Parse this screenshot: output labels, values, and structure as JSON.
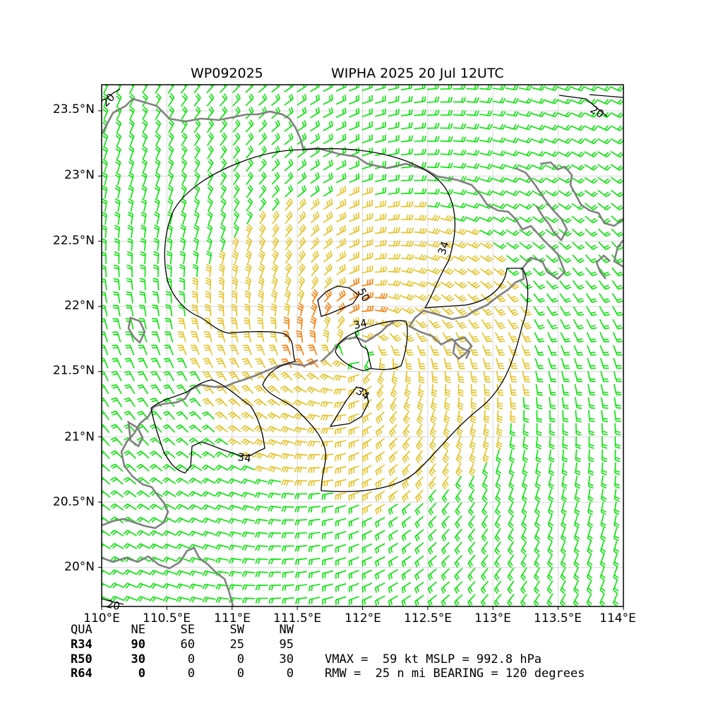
{
  "header": {
    "storm_id": "WP092025",
    "storm_label": "WIPHA 2025 20 Jul 12UTC"
  },
  "axes": {
    "lon_ticks": [
      "110°E",
      "110.5°E",
      "111°E",
      "111.5°E",
      "112°E",
      "112.5°E",
      "113°E",
      "113.5°E",
      "114°E"
    ],
    "lat_ticks": [
      "20°N",
      "20.5°N",
      "21°N",
      "21.5°N",
      "22°N",
      "22.5°N",
      "23°N",
      "23.5°N"
    ],
    "lon_range": [
      110,
      114
    ],
    "lat_range": [
      19.7,
      23.7
    ],
    "grid": true
  },
  "map": {
    "center_lon": 111.95,
    "center_lat": 21.66,
    "contour_labels": [
      "34",
      "34",
      "34",
      "50",
      "34",
      "20",
      "20",
      "20"
    ],
    "colors": {
      "barb_weak": "#00e600",
      "barb_34kt": "#e6c020",
      "barb_50kt": "#ff7a00",
      "coastline": "#808080",
      "contour": "#000000",
      "grid": "#d8d8d8"
    }
  },
  "chart_data": {
    "type": "table",
    "wind_radii_header": [
      "QUA",
      "NE",
      "SE",
      "SW",
      "NW"
    ],
    "wind_radii_rows": [
      {
        "label": "R34",
        "values": [
          "90",
          "60",
          "25",
          "95"
        ]
      },
      {
        "label": "R50",
        "values": [
          "30",
          "0",
          "0",
          "30"
        ]
      },
      {
        "label": "R64",
        "values": [
          "0",
          "0",
          "0",
          "0"
        ]
      }
    ],
    "units_note": ""
  },
  "summary": {
    "line1": "VMAX =  59 kt MSLP = 992.8 hPa",
    "line2": "RMW =  25 n mi BEARING = 120 degrees"
  }
}
